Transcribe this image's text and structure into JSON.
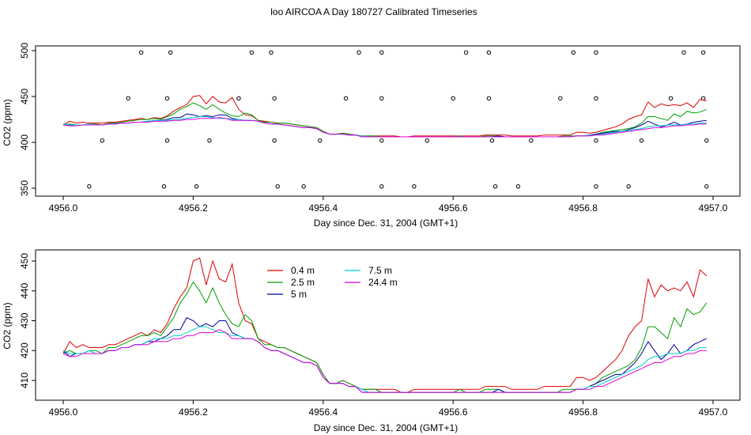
{
  "title": "loo AIRCOA A  Day 180727  Calibrated Timeseries",
  "chart_data": [
    {
      "type": "line",
      "xlabel": "Day since Dec. 31, 2004 (GMT+1)",
      "ylabel": "CO2 (ppm)",
      "xlim": [
        4956.0,
        4957.0
      ],
      "ylim": [
        350,
        500
      ],
      "xticks": [
        "4956.0",
        "4956.2",
        "4956.4",
        "4956.6",
        "4956.8",
        "4957.0"
      ],
      "yticks": [
        "350",
        "400",
        "450",
        "500"
      ],
      "reference_points": [
        {
          "x": 4956.04,
          "y": 352
        },
        {
          "x": 4956.06,
          "y": 402
        },
        {
          "x": 4956.1,
          "y": 448
        },
        {
          "x": 4956.12,
          "y": 498
        },
        {
          "x": 4956.155,
          "y": 352
        },
        {
          "x": 4956.16,
          "y": 402
        },
        {
          "x": 4956.16,
          "y": 448
        },
        {
          "x": 4956.165,
          "y": 498
        },
        {
          "x": 4956.205,
          "y": 352
        },
        {
          "x": 4956.225,
          "y": 402
        },
        {
          "x": 4956.27,
          "y": 448
        },
        {
          "x": 4956.29,
          "y": 498
        },
        {
          "x": 4956.32,
          "y": 498
        },
        {
          "x": 4956.325,
          "y": 448
        },
        {
          "x": 4956.325,
          "y": 402
        },
        {
          "x": 4956.33,
          "y": 352
        },
        {
          "x": 4956.37,
          "y": 352
        },
        {
          "x": 4956.395,
          "y": 402
        },
        {
          "x": 4956.435,
          "y": 448
        },
        {
          "x": 4956.455,
          "y": 498
        },
        {
          "x": 4956.49,
          "y": 498
        },
        {
          "x": 4956.49,
          "y": 448
        },
        {
          "x": 4956.49,
          "y": 402
        },
        {
          "x": 4956.49,
          "y": 352
        },
        {
          "x": 4956.54,
          "y": 352
        },
        {
          "x": 4956.56,
          "y": 402
        },
        {
          "x": 4956.6,
          "y": 448
        },
        {
          "x": 4956.62,
          "y": 498
        },
        {
          "x": 4956.655,
          "y": 498
        },
        {
          "x": 4956.655,
          "y": 448
        },
        {
          "x": 4956.66,
          "y": 402
        },
        {
          "x": 4956.665,
          "y": 352
        },
        {
          "x": 4956.7,
          "y": 352
        },
        {
          "x": 4956.72,
          "y": 402
        },
        {
          "x": 4956.765,
          "y": 448
        },
        {
          "x": 4956.785,
          "y": 498
        },
        {
          "x": 4956.82,
          "y": 498
        },
        {
          "x": 4956.82,
          "y": 448
        },
        {
          "x": 4956.82,
          "y": 402
        },
        {
          "x": 4956.82,
          "y": 352
        },
        {
          "x": 4956.87,
          "y": 352
        },
        {
          "x": 4956.89,
          "y": 402
        },
        {
          "x": 4956.935,
          "y": 448
        },
        {
          "x": 4956.955,
          "y": 498
        },
        {
          "x": 4956.985,
          "y": 498
        },
        {
          "x": 4956.985,
          "y": 448
        },
        {
          "x": 4956.99,
          "y": 402
        },
        {
          "x": 4956.99,
          "y": 352
        }
      ],
      "x": [
        4956.0,
        4956.01,
        4956.02,
        4956.03,
        4956.04,
        4956.05,
        4956.06,
        4956.07,
        4956.08,
        4956.09,
        4956.1,
        4956.11,
        4956.12,
        4956.13,
        4956.14,
        4956.15,
        4956.16,
        4956.17,
        4956.18,
        4956.19,
        4956.2,
        4956.21,
        4956.22,
        4956.23,
        4956.24,
        4956.25,
        4956.26,
        4956.27,
        4956.28,
        4956.29,
        4956.3,
        4956.31,
        4956.32,
        4956.33,
        4956.34,
        4956.35,
        4956.36,
        4956.37,
        4956.38,
        4956.39,
        4956.4,
        4956.41,
        4956.42,
        4956.43,
        4956.44,
        4956.45,
        4956.46,
        4956.47,
        4956.48,
        4956.49,
        4956.5,
        4956.51,
        4956.52,
        4956.53,
        4956.54,
        4956.55,
        4956.56,
        4956.57,
        4956.58,
        4956.59,
        4956.6,
        4956.61,
        4956.62,
        4956.63,
        4956.64,
        4956.65,
        4956.66,
        4956.67,
        4956.68,
        4956.69,
        4956.7,
        4956.71,
        4956.72,
        4956.73,
        4956.74,
        4956.75,
        4956.76,
        4956.77,
        4956.78,
        4956.79,
        4956.8,
        4956.81,
        4956.82,
        4956.83,
        4956.84,
        4956.85,
        4956.86,
        4956.87,
        4956.88,
        4956.89,
        4956.9,
        4956.91,
        4956.92,
        4956.93,
        4956.94,
        4956.95,
        4956.96,
        4956.97,
        4956.98,
        4956.99
      ],
      "series": [
        {
          "name": "0.4 m",
          "color": "#dd0000",
          "values": [
            419,
            423,
            421,
            422,
            421,
            421,
            421,
            422,
            422,
            423,
            424,
            425,
            426,
            425,
            427,
            426,
            429,
            434,
            438,
            441,
            450,
            451,
            442,
            450,
            444,
            443,
            449,
            436,
            430,
            429,
            424,
            423,
            422,
            421,
            421,
            420,
            419,
            418,
            417,
            416,
            412,
            409,
            409,
            410,
            409,
            408,
            407,
            407,
            407,
            407,
            407,
            407,
            406,
            406,
            407,
            407,
            407,
            407,
            407,
            407,
            407,
            407,
            407,
            407,
            407,
            408,
            408,
            408,
            408,
            407,
            407,
            407,
            407,
            407,
            408,
            408,
            408,
            408,
            408,
            411,
            411,
            410,
            411,
            413,
            415,
            417,
            420,
            425,
            428,
            430,
            444,
            438,
            442,
            440,
            441,
            440,
            443,
            438,
            447,
            445
          ]
        },
        {
          "name": "2.5 m",
          "color": "#00a000",
          "values": [
            419,
            420,
            419,
            419,
            420,
            420,
            419,
            421,
            421,
            422,
            423,
            424,
            425,
            425,
            426,
            425,
            428,
            431,
            436,
            439,
            443,
            440,
            436,
            441,
            436,
            432,
            429,
            428,
            432,
            430,
            424,
            422,
            422,
            421,
            421,
            420,
            419,
            418,
            417,
            416,
            412,
            409,
            409,
            410,
            409,
            408,
            407,
            407,
            407,
            406,
            406,
            406,
            406,
            406,
            406,
            406,
            406,
            406,
            406,
            406,
            406,
            407,
            406,
            406,
            406,
            407,
            407,
            407,
            406,
            406,
            406,
            406,
            406,
            406,
            406,
            406,
            406,
            407,
            407,
            407,
            407,
            408,
            409,
            411,
            412,
            413,
            414,
            415,
            417,
            421,
            428,
            428,
            426,
            424,
            431,
            428,
            434,
            432,
            433,
            436
          ]
        },
        {
          "name": "5 m",
          "color": "#0000a0",
          "values": [
            420,
            418,
            419,
            419,
            419,
            419,
            419,
            420,
            420,
            421,
            421,
            422,
            422,
            423,
            423,
            424,
            425,
            427,
            427,
            431,
            430,
            428,
            429,
            428,
            430,
            430,
            426,
            425,
            424,
            424,
            423,
            421,
            420,
            420,
            419,
            418,
            417,
            416,
            416,
            415,
            411,
            409,
            409,
            409,
            408,
            408,
            406,
            406,
            406,
            406,
            406,
            406,
            406,
            406,
            406,
            406,
            406,
            406,
            406,
            406,
            406,
            406,
            406,
            406,
            406,
            406,
            406,
            407,
            406,
            406,
            406,
            406,
            406,
            406,
            406,
            406,
            406,
            406,
            406,
            407,
            407,
            408,
            409,
            410,
            411,
            412,
            412,
            414,
            416,
            419,
            423,
            420,
            417,
            419,
            422,
            419,
            420,
            422,
            423,
            424
          ]
        },
        {
          "name": "7.5 m",
          "color": "#00cccc",
          "values": [
            420,
            419,
            419,
            419,
            420,
            419,
            419,
            420,
            420,
            421,
            421,
            422,
            422,
            423,
            424,
            424,
            424,
            425,
            425,
            426,
            427,
            428,
            428,
            427,
            426,
            426,
            425,
            425,
            424,
            424,
            423,
            421,
            420,
            420,
            419,
            418,
            417,
            416,
            416,
            415,
            411,
            409,
            409,
            409,
            408,
            408,
            407,
            406,
            406,
            406,
            406,
            406,
            406,
            406,
            406,
            406,
            406,
            406,
            406,
            406,
            406,
            406,
            406,
            406,
            406,
            406,
            406,
            406,
            406,
            406,
            406,
            406,
            406,
            406,
            406,
            406,
            406,
            406,
            406,
            407,
            407,
            408,
            408,
            409,
            410,
            411,
            412,
            413,
            414,
            415,
            417,
            418,
            418,
            419,
            419,
            419,
            420,
            420,
            421,
            421
          ]
        },
        {
          "name": "24.4 m",
          "color": "#e000e0",
          "values": [
            419,
            418,
            418,
            419,
            419,
            419,
            419,
            420,
            420,
            421,
            421,
            422,
            422,
            422,
            423,
            423,
            423,
            424,
            424,
            425,
            425,
            426,
            426,
            426,
            427,
            426,
            424,
            424,
            424,
            424,
            423,
            421,
            420,
            420,
            419,
            418,
            417,
            416,
            416,
            415,
            411,
            409,
            409,
            409,
            408,
            408,
            406,
            406,
            406,
            406,
            406,
            406,
            406,
            406,
            406,
            406,
            406,
            406,
            406,
            406,
            406,
            406,
            406,
            406,
            406,
            406,
            406,
            406,
            406,
            406,
            406,
            406,
            406,
            406,
            406,
            406,
            406,
            406,
            406,
            407,
            407,
            407,
            408,
            408,
            409,
            410,
            411,
            412,
            413,
            414,
            415,
            416,
            416,
            417,
            418,
            418,
            419,
            419,
            420,
            420
          ]
        }
      ]
    },
    {
      "type": "line",
      "xlabel": "Day since Dec. 31, 2004 (GMT+1)",
      "ylabel": "CO2 (ppm)",
      "xlim": [
        4956.0,
        4957.0
      ],
      "ylim": [
        405,
        452
      ],
      "xticks": [
        "4956.0",
        "4956.2",
        "4956.4",
        "4956.6",
        "4956.8",
        "4957.0"
      ],
      "yticks": [
        "410",
        "420",
        "430",
        "440",
        "450"
      ],
      "legend": {
        "position": "top-center",
        "columns": [
          [
            "0.4 m",
            "2.5 m",
            "5 m"
          ],
          [
            "7.5 m",
            "24.4 m"
          ]
        ]
      },
      "series_ref": "same series as panel 1"
    }
  ]
}
